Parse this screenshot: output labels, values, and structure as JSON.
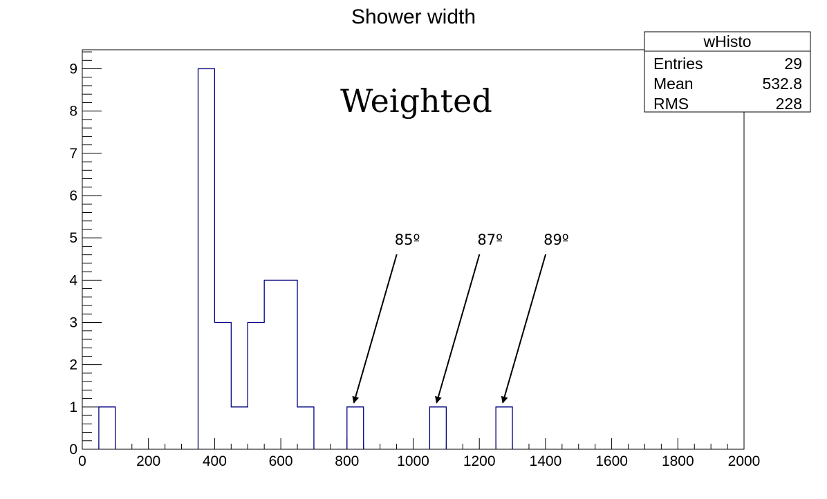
{
  "chart_data": {
    "type": "bar",
    "title": "Shower width",
    "histogram_name": "wHisto",
    "bin_width": 50,
    "xlim": [
      0,
      2000
    ],
    "ylim": [
      0,
      9.45
    ],
    "x_ticks": [
      0,
      200,
      400,
      600,
      800,
      1000,
      1200,
      1400,
      1600,
      1800,
      2000
    ],
    "y_ticks": [
      0,
      1,
      2,
      3,
      4,
      5,
      6,
      7,
      8,
      9
    ],
    "bins": [
      {
        "x0": 50,
        "value": 1
      },
      {
        "x0": 350,
        "value": 9
      },
      {
        "x0": 400,
        "value": 3
      },
      {
        "x0": 450,
        "value": 1
      },
      {
        "x0": 500,
        "value": 3
      },
      {
        "x0": 550,
        "value": 4
      },
      {
        "x0": 600,
        "value": 4
      },
      {
        "x0": 650,
        "value": 1
      },
      {
        "x0": 800,
        "value": 1
      },
      {
        "x0": 1050,
        "value": 1
      },
      {
        "x0": 1250,
        "value": 1
      }
    ],
    "stats": [
      {
        "label": "Entries",
        "value": "29"
      },
      {
        "label": "Mean",
        "value": "532.8"
      },
      {
        "label": "RMS",
        "value": "228"
      }
    ],
    "overlay_text": "Weighted",
    "annotations": [
      {
        "text": "85º",
        "x": 825,
        "y": 1
      },
      {
        "text": "87º",
        "x": 1075,
        "y": 1
      },
      {
        "text": "89º",
        "x": 1275,
        "y": 1
      }
    ],
    "line_color": "#000080"
  }
}
